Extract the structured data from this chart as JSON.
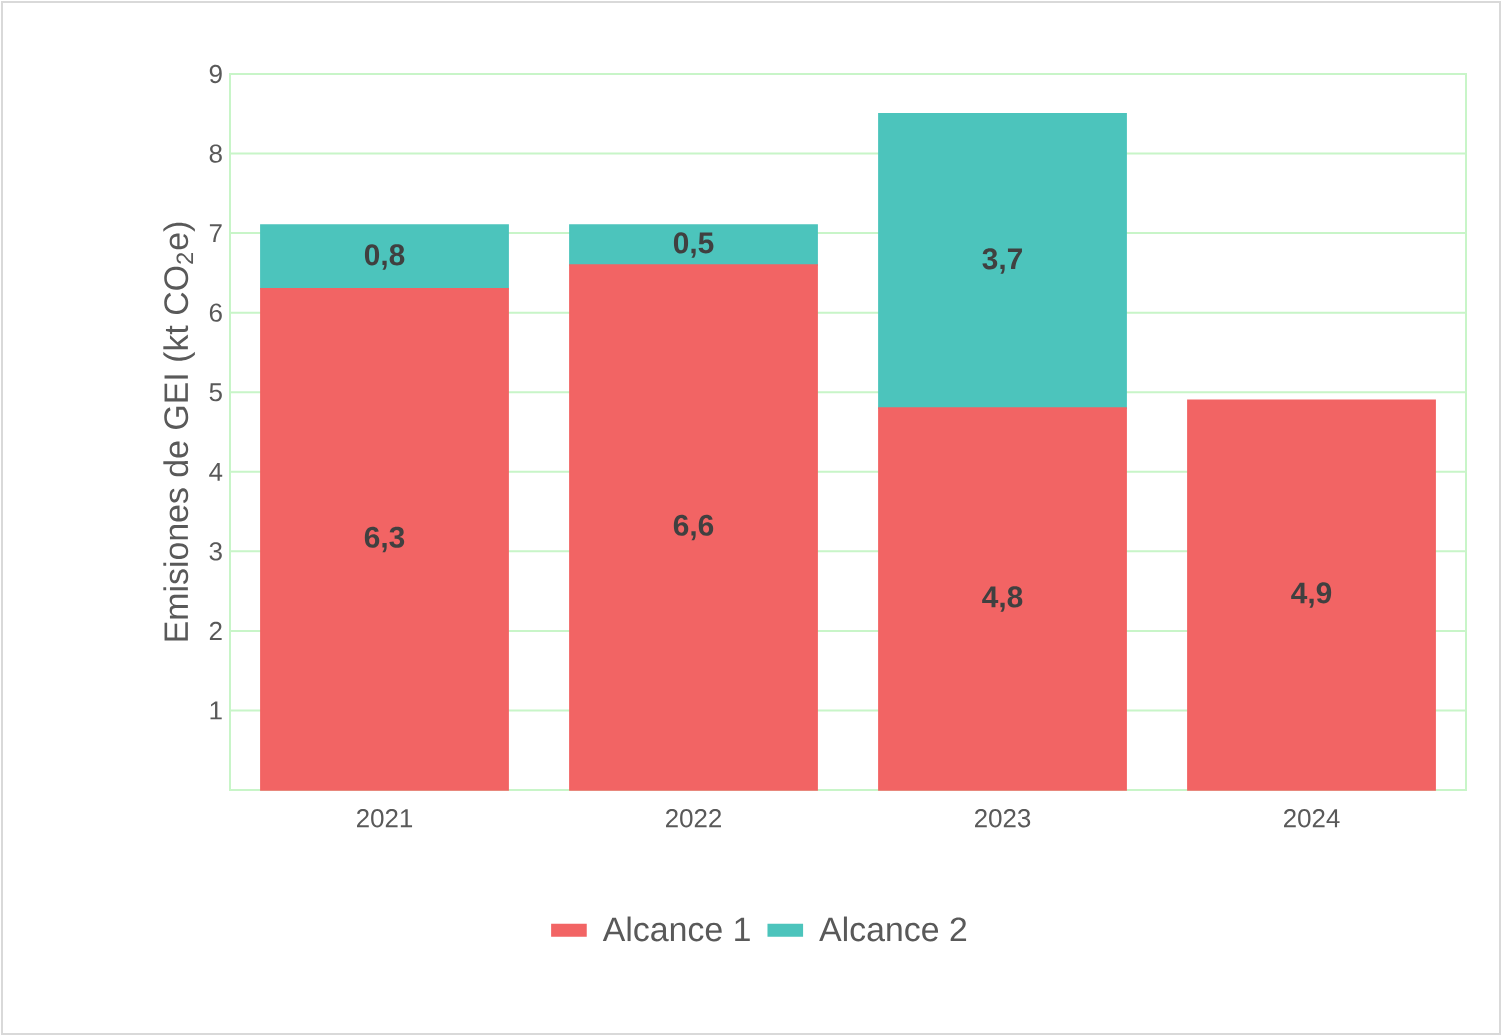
{
  "chart_data": {
    "type": "bar",
    "stacked": true,
    "ylabel": "Emisiones de GEI (kt CO$_{2}$e)",
    "categories": [
      "2021",
      "2022",
      "2023",
      "2024"
    ],
    "series": [
      {
        "name": "Alcance 1",
        "color": "#f26464",
        "values": [
          6.3,
          6.6,
          4.8,
          4.9
        ],
        "value_labels": [
          "6,3",
          "6,6",
          "4,8",
          "4,9"
        ]
      },
      {
        "name": "Alcance 2",
        "color": "#4cc4bc",
        "values": [
          0.8,
          0.5,
          3.7,
          null
        ],
        "value_labels": [
          "0,8",
          "0,5",
          "3,7",
          null
        ]
      }
    ],
    "ylim": [
      0,
      9
    ],
    "yticks": [
      1,
      2,
      3,
      4,
      5,
      6,
      7,
      8,
      9
    ],
    "grid": "y",
    "legend": "bottom"
  }
}
